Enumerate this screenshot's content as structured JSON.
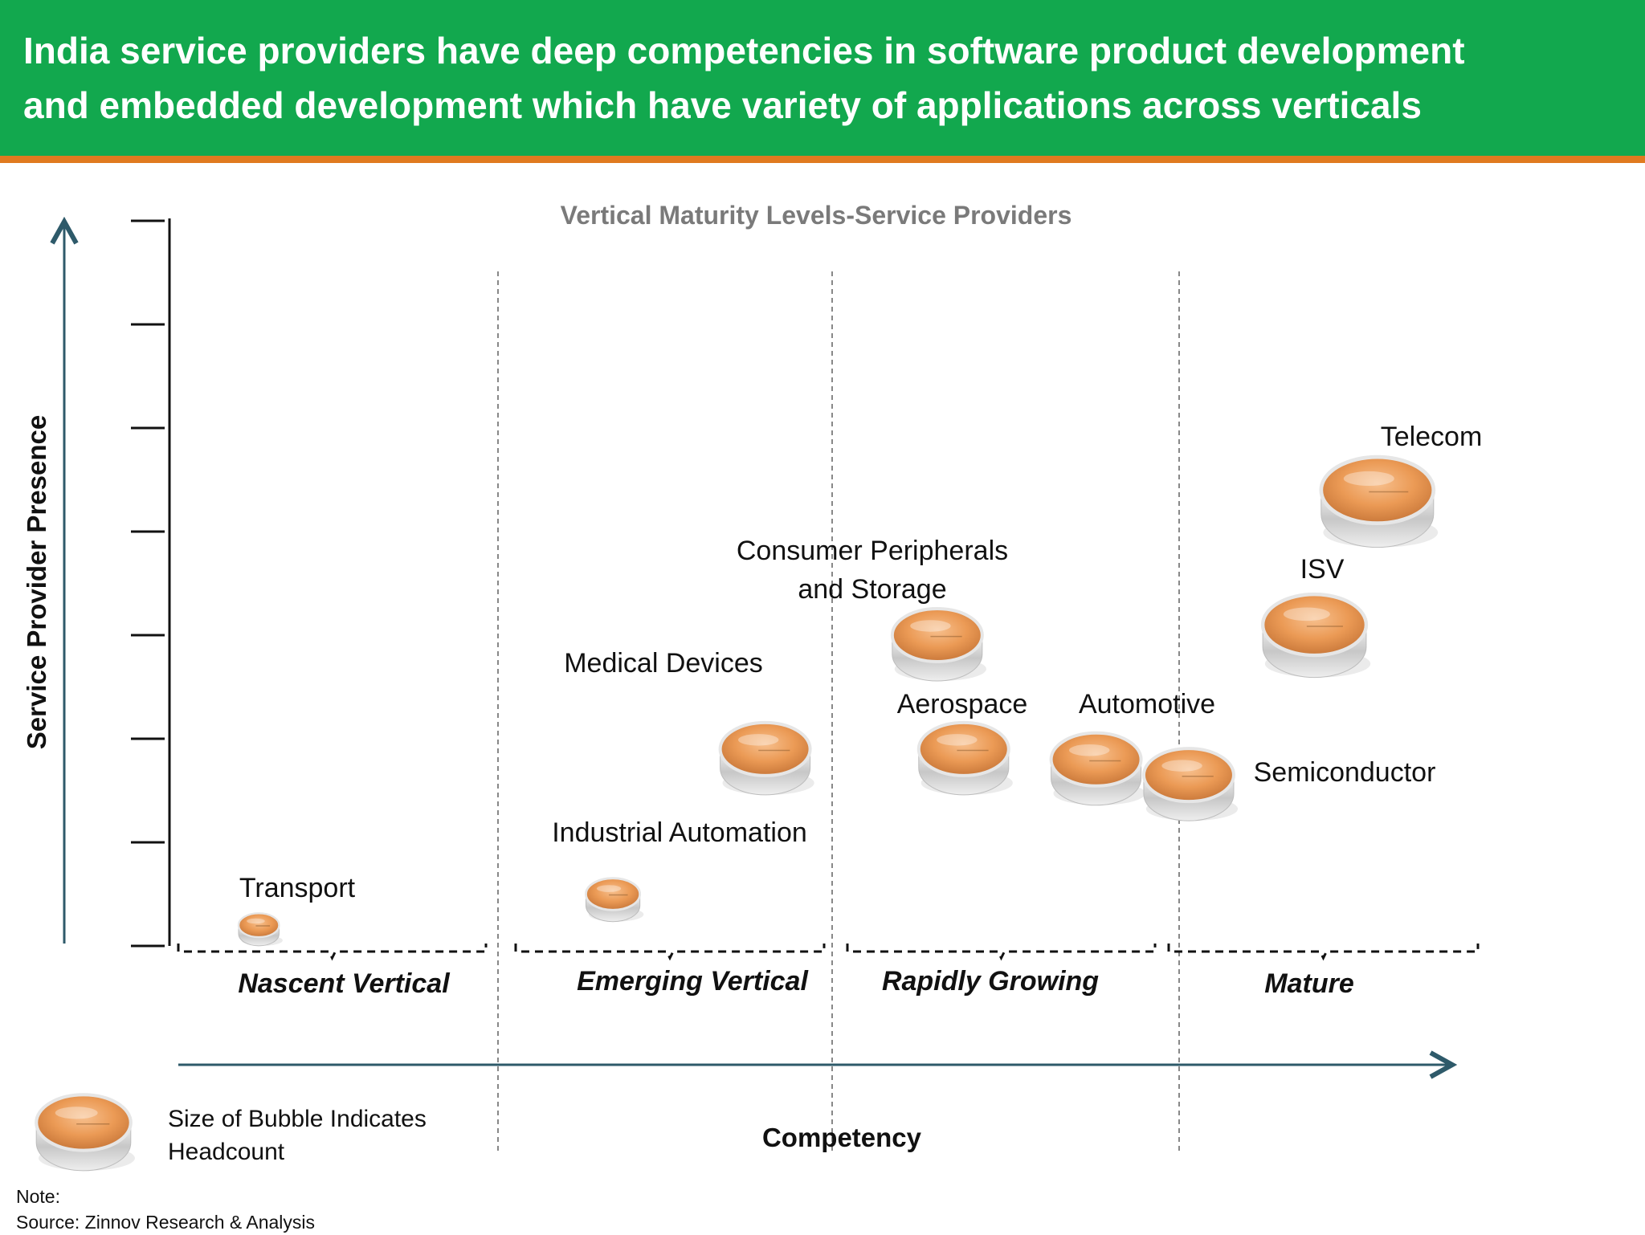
{
  "header": {
    "title_line1": "India service providers have deep competencies in software product development",
    "title_line2": "and embedded development which have variety of applications across verticals",
    "bg_color": "#12a84e",
    "accent_color": "#e07a1f"
  },
  "chart_data": {
    "type": "bubble",
    "title": "Vertical Maturity Levels-Service Providers",
    "xlabel": "Competency",
    "ylabel": "Service Provider Presence",
    "segments": [
      "Nascent Vertical",
      "Emerging Vertical",
      "Rapidly Growing",
      "Mature"
    ],
    "points": [
      {
        "label": "Transport",
        "segment": "Nascent Vertical",
        "x": 0.27,
        "y": 0.2,
        "size": 0.45
      },
      {
        "label": "Industrial Automation",
        "segment": "Emerging Vertical",
        "x": 1.34,
        "y": 0.5,
        "size": 0.6
      },
      {
        "label": "Medical Devices",
        "segment": "Emerging Vertical",
        "x": 1.8,
        "y": 1.9,
        "size": 1.0
      },
      {
        "label": "Consumer Peripherals and Storage",
        "segment": "Rapidly Growing",
        "x": 2.32,
        "y": 3.0,
        "size": 1.0
      },
      {
        "label": "Aerospace",
        "segment": "Rapidly Growing",
        "x": 2.4,
        "y": 1.9,
        "size": 1.0
      },
      {
        "label": "Automotive",
        "segment": "Rapidly Growing",
        "x": 2.8,
        "y": 1.8,
        "size": 1.0
      },
      {
        "label": "Semiconductor",
        "segment": "Mature",
        "x": 3.08,
        "y": 1.65,
        "size": 1.0
      },
      {
        "label": "ISV",
        "segment": "Mature",
        "x": 3.46,
        "y": 3.1,
        "size": 1.15
      },
      {
        "label": "Telecom",
        "segment": "Mature",
        "x": 3.65,
        "y": 4.4,
        "size": 1.25
      }
    ],
    "bubble_color": "#f0a262",
    "grid": false
  },
  "legend": {
    "line1": "Size of Bubble Indicates",
    "line2": "Headcount"
  },
  "footer": {
    "note": "Note:",
    "source": "Source: Zinnov Research & Analysis"
  }
}
